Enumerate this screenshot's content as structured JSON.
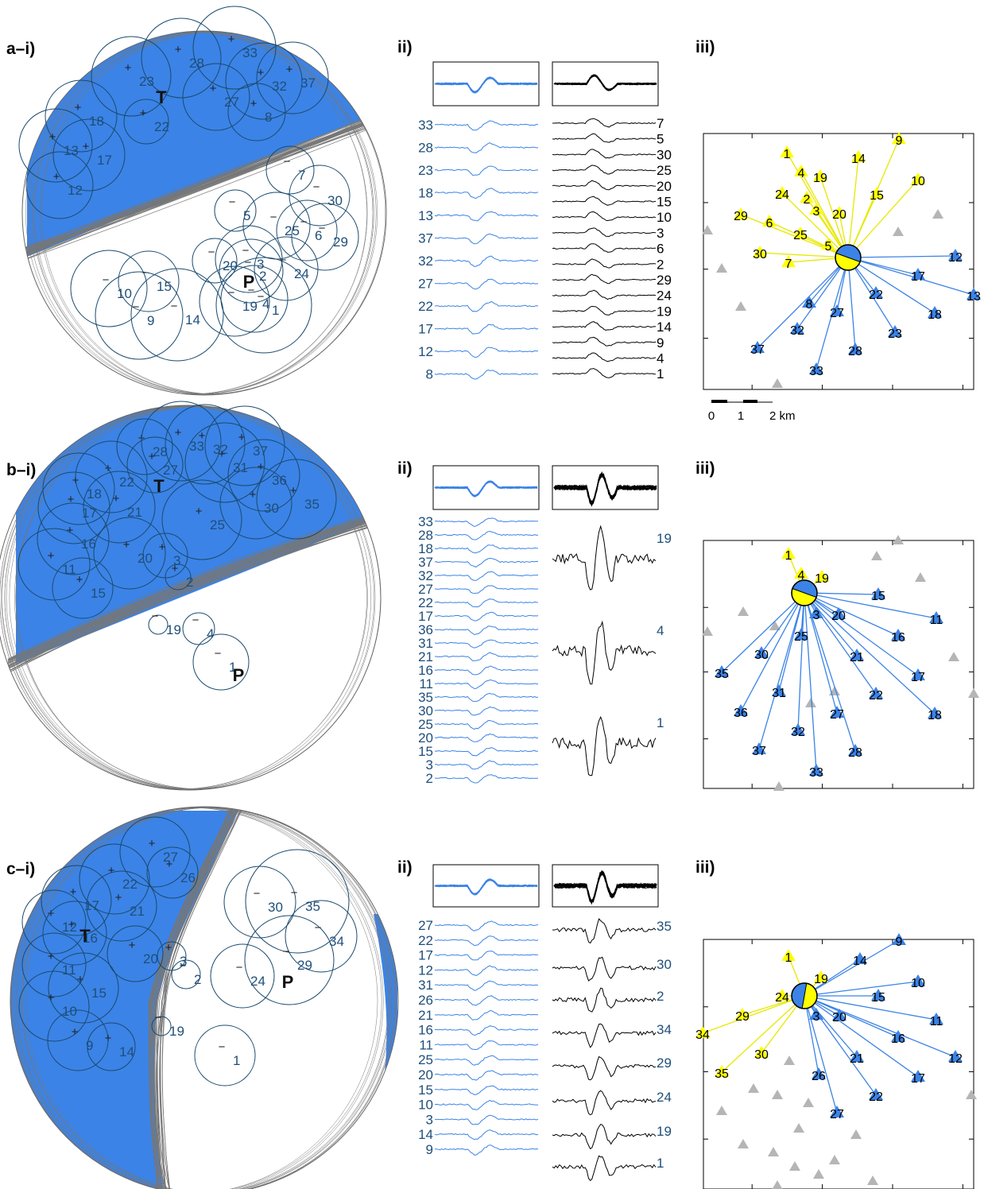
{
  "colors": {
    "compression": "#3b83e6",
    "dilatation": "#ffff00",
    "nodal_plane": "#777777",
    "circle": "#1a4a6e",
    "station_gray": "#b5b5b5",
    "blue_text": "#1f4e79",
    "trace_blue": "#3b83e6",
    "trace_black": "#000000"
  },
  "scalebar": {
    "labels": [
      "0",
      "1",
      "2 km"
    ]
  },
  "panels": [
    {
      "label_i": "a–i)",
      "label_ii": "ii)",
      "label_iii": "iii)",
      "pole_T": "T",
      "pole_P": "P",
      "polarities": [
        {
          "id": "23",
          "s": "+"
        },
        {
          "id": "28",
          "s": "+"
        },
        {
          "id": "33",
          "s": "+"
        },
        {
          "id": "32",
          "s": "+"
        },
        {
          "id": "37",
          "s": "+"
        },
        {
          "id": "27",
          "s": "+"
        },
        {
          "id": "8",
          "s": "+"
        },
        {
          "id": "22",
          "s": "+"
        },
        {
          "id": "18",
          "s": "+"
        },
        {
          "id": "13",
          "s": "+"
        },
        {
          "id": "17",
          "s": "+"
        },
        {
          "id": "12",
          "s": "+"
        },
        {
          "id": "7",
          "s": "−"
        },
        {
          "id": "30",
          "s": "−"
        },
        {
          "id": "5",
          "s": "−"
        },
        {
          "id": "25",
          "s": "−"
        },
        {
          "id": "6",
          "s": "−"
        },
        {
          "id": "29",
          "s": "−"
        },
        {
          "id": "20",
          "s": "−"
        },
        {
          "id": "3",
          "s": "−"
        },
        {
          "id": "2",
          "s": "−"
        },
        {
          "id": "24",
          "s": "−"
        },
        {
          "id": "19",
          "s": "−"
        },
        {
          "id": "4",
          "s": "−"
        },
        {
          "id": "1",
          "s": "−"
        },
        {
          "id": "10",
          "s": "−"
        },
        {
          "id": "15",
          "s": "−"
        },
        {
          "id": "9",
          "s": "−"
        },
        {
          "id": "14",
          "s": "−"
        }
      ],
      "traces_left": [
        "33",
        "28",
        "23",
        "18",
        "13",
        "37",
        "32",
        "27",
        "22",
        "17",
        "12",
        "8"
      ],
      "traces_right": [
        "7",
        "5",
        "30",
        "25",
        "20",
        "15",
        "10",
        "3",
        "6",
        "2",
        "29",
        "24",
        "19",
        "14",
        "9",
        "4",
        "1"
      ],
      "right_style": "stack",
      "stations": [
        {
          "id": "1",
          "pol": "d"
        },
        {
          "id": "9",
          "pol": "d"
        },
        {
          "id": "14",
          "pol": "d"
        },
        {
          "id": "4",
          "pol": "d"
        },
        {
          "id": "19",
          "pol": "d"
        },
        {
          "id": "10",
          "pol": "d"
        },
        {
          "id": "24",
          "pol": "d"
        },
        {
          "id": "2",
          "pol": "d"
        },
        {
          "id": "15",
          "pol": "d"
        },
        {
          "id": "3",
          "pol": "d"
        },
        {
          "id": "20",
          "pol": "d"
        },
        {
          "id": "29",
          "pol": "d"
        },
        {
          "id": "6",
          "pol": "d"
        },
        {
          "id": "25",
          "pol": "d"
        },
        {
          "id": "5",
          "pol": "d"
        },
        {
          "id": "30",
          "pol": "d"
        },
        {
          "id": "7",
          "pol": "d"
        },
        {
          "id": "12",
          "pol": "c"
        },
        {
          "id": "17",
          "pol": "c"
        },
        {
          "id": "13",
          "pol": "c"
        },
        {
          "id": "8",
          "pol": "c"
        },
        {
          "id": "22",
          "pol": "c"
        },
        {
          "id": "27",
          "pol": "c"
        },
        {
          "id": "18",
          "pol": "c"
        },
        {
          "id": "32",
          "pol": "c"
        },
        {
          "id": "23",
          "pol": "c"
        },
        {
          "id": "37",
          "pol": "c"
        },
        {
          "id": "28",
          "pol": "c"
        },
        {
          "id": "33",
          "pol": "c"
        }
      ]
    },
    {
      "label_i": "b–i)",
      "label_ii": "ii)",
      "label_iii": "iii)",
      "pole_T": "T",
      "pole_P": "P",
      "polarities": [
        {
          "id": "28",
          "s": "+"
        },
        {
          "id": "27",
          "s": "+"
        },
        {
          "id": "33",
          "s": "+"
        },
        {
          "id": "32",
          "s": "+"
        },
        {
          "id": "37",
          "s": "+"
        },
        {
          "id": "31",
          "s": "+"
        },
        {
          "id": "36",
          "s": "+"
        },
        {
          "id": "22",
          "s": "+"
        },
        {
          "id": "18",
          "s": "+"
        },
        {
          "id": "17",
          "s": "+"
        },
        {
          "id": "21",
          "s": "+"
        },
        {
          "id": "30",
          "s": "+"
        },
        {
          "id": "35",
          "s": "+"
        },
        {
          "id": "25",
          "s": "+"
        },
        {
          "id": "16",
          "s": "+"
        },
        {
          "id": "20",
          "s": "+"
        },
        {
          "id": "3",
          "s": "+"
        },
        {
          "id": "11",
          "s": "+"
        },
        {
          "id": "15",
          "s": "+"
        },
        {
          "id": "2",
          "s": "+"
        },
        {
          "id": "19",
          "s": "−"
        },
        {
          "id": "4",
          "s": "−"
        },
        {
          "id": "1",
          "s": "−"
        }
      ],
      "traces_left": [
        "33",
        "28",
        "18",
        "37",
        "32",
        "27",
        "22",
        "17",
        "36",
        "31",
        "21",
        "16",
        "11",
        "35",
        "30",
        "25",
        "20",
        "15",
        "3",
        "2"
      ],
      "traces_right": [
        "19",
        "4",
        "1"
      ],
      "right_style": "separate",
      "stations": [
        {
          "id": "1",
          "pol": "d"
        },
        {
          "id": "4",
          "pol": "d"
        },
        {
          "id": "19",
          "pol": "d"
        },
        {
          "id": "15",
          "pol": "c"
        },
        {
          "id": "3",
          "pol": "c"
        },
        {
          "id": "20",
          "pol": "c"
        },
        {
          "id": "11",
          "pol": "c"
        },
        {
          "id": "25",
          "pol": "c"
        },
        {
          "id": "16",
          "pol": "c"
        },
        {
          "id": "30",
          "pol": "c"
        },
        {
          "id": "21",
          "pol": "c"
        },
        {
          "id": "35",
          "pol": "c"
        },
        {
          "id": "17",
          "pol": "c"
        },
        {
          "id": "31",
          "pol": "c"
        },
        {
          "id": "22",
          "pol": "c"
        },
        {
          "id": "36",
          "pol": "c"
        },
        {
          "id": "27",
          "pol": "c"
        },
        {
          "id": "18",
          "pol": "c"
        },
        {
          "id": "32",
          "pol": "c"
        },
        {
          "id": "37",
          "pol": "c"
        },
        {
          "id": "28",
          "pol": "c"
        },
        {
          "id": "33",
          "pol": "c"
        }
      ]
    },
    {
      "label_i": "c–i)",
      "label_ii": "ii)",
      "label_iii": "iii)",
      "pole_T": "T",
      "pole_P": "P",
      "polarities": [
        {
          "id": "27",
          "s": "+"
        },
        {
          "id": "22",
          "s": "+"
        },
        {
          "id": "26",
          "s": "+"
        },
        {
          "id": "17",
          "s": "+"
        },
        {
          "id": "21",
          "s": "+"
        },
        {
          "id": "12",
          "s": "+"
        },
        {
          "id": "16",
          "s": "+"
        },
        {
          "id": "20",
          "s": "+"
        },
        {
          "id": "3",
          "s": "+"
        },
        {
          "id": "11",
          "s": "+"
        },
        {
          "id": "15",
          "s": "+"
        },
        {
          "id": "10",
          "s": "+"
        },
        {
          "id": "9",
          "s": "+"
        },
        {
          "id": "14",
          "s": "+"
        },
        {
          "id": "30",
          "s": "−"
        },
        {
          "id": "35",
          "s": "−"
        },
        {
          "id": "34",
          "s": "−"
        },
        {
          "id": "29",
          "s": "−"
        },
        {
          "id": "2",
          "s": "−"
        },
        {
          "id": "24",
          "s": "−"
        },
        {
          "id": "19",
          "s": "−"
        },
        {
          "id": "1",
          "s": "−"
        }
      ],
      "traces_left": [
        "27",
        "22",
        "17",
        "12",
        "31",
        "26",
        "21",
        "16",
        "11",
        "25",
        "20",
        "15",
        "10",
        "3",
        "14",
        "9"
      ],
      "traces_right": [
        "35",
        "30",
        "2",
        "34",
        "29",
        "24",
        "19",
        "1"
      ],
      "right_style": "separate",
      "stations": [
        {
          "id": "1",
          "pol": "d"
        },
        {
          "id": "9",
          "pol": "c"
        },
        {
          "id": "14",
          "pol": "c"
        },
        {
          "id": "19",
          "pol": "d"
        },
        {
          "id": "10",
          "pol": "c"
        },
        {
          "id": "24",
          "pol": "d"
        },
        {
          "id": "15",
          "pol": "c"
        },
        {
          "id": "29",
          "pol": "d"
        },
        {
          "id": "3",
          "pol": "c"
        },
        {
          "id": "20",
          "pol": "c"
        },
        {
          "id": "11",
          "pol": "c"
        },
        {
          "id": "34",
          "pol": "d"
        },
        {
          "id": "16",
          "pol": "c"
        },
        {
          "id": "12",
          "pol": "c"
        },
        {
          "id": "30",
          "pol": "d"
        },
        {
          "id": "21",
          "pol": "c"
        },
        {
          "id": "35",
          "pol": "d"
        },
        {
          "id": "26",
          "pol": "c"
        },
        {
          "id": "17",
          "pol": "c"
        },
        {
          "id": "22",
          "pol": "c"
        },
        {
          "id": "27",
          "pol": "c"
        }
      ]
    }
  ]
}
